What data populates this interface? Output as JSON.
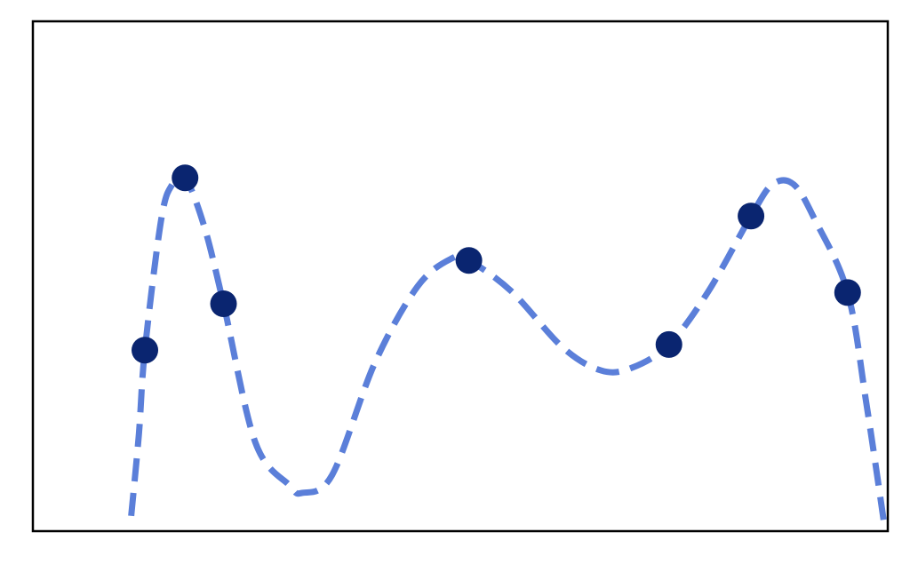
{
  "chart_data": {
    "type": "scatter",
    "title": "",
    "xlabel": "",
    "ylabel": "",
    "xlim": [
      0,
      1
    ],
    "ylim": [
      0,
      1
    ],
    "grid": false,
    "axes_ticks_visible": false,
    "colors": {
      "curve": "#5b7fd9",
      "points": "#0a2570",
      "frame": "#000000",
      "background": "#ffffff"
    },
    "series": [
      {
        "kind": "points",
        "x": [
          0.131,
          0.178,
          0.223,
          0.51,
          0.744,
          0.84,
          0.953
        ],
        "y": [
          0.355,
          0.693,
          0.446,
          0.531,
          0.366,
          0.618,
          0.468
        ]
      },
      {
        "kind": "fit-line-dashed",
        "x": [
          0.115,
          0.124,
          0.131,
          0.15,
          0.163,
          0.178,
          0.2,
          0.223,
          0.26,
          0.3,
          0.315,
          0.35,
          0.4,
          0.45,
          0.49,
          0.51,
          0.56,
          0.62,
          0.665,
          0.7,
          0.744,
          0.79,
          0.84,
          0.865,
          0.89,
          0.915,
          0.953,
          0.975,
          0.997
        ],
        "y": [
          0.03,
          0.19,
          0.355,
          0.61,
          0.68,
          0.693,
          0.6,
          0.446,
          0.175,
          0.09,
          0.075,
          0.11,
          0.33,
          0.48,
          0.535,
          0.531,
          0.47,
          0.36,
          0.315,
          0.32,
          0.366,
          0.47,
          0.618,
          0.68,
          0.68,
          0.61,
          0.468,
          0.25,
          0.0
        ]
      }
    ]
  }
}
